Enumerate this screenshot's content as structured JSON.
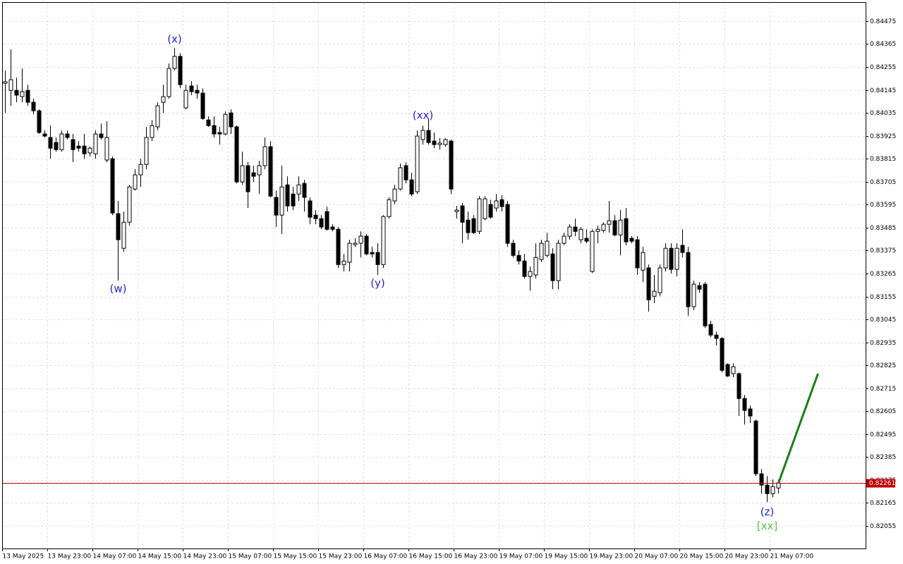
{
  "chart_data": {
    "type": "candlestick",
    "ylim": [
      0.81947,
      0.84566
    ],
    "yticks": [
      0.84475,
      0.84365,
      0.84255,
      0.84145,
      0.84035,
      0.83925,
      0.83815,
      0.83705,
      0.83595,
      0.83485,
      0.83375,
      0.83265,
      0.83155,
      0.83045,
      0.82935,
      0.82825,
      0.82715,
      0.82605,
      0.82495,
      0.82385,
      0.82275,
      0.82165,
      0.82055
    ],
    "xticks": [
      {
        "value": 0,
        "label": "13 May 2025"
      },
      {
        "value": 8,
        "label": "13 May 23:00"
      },
      {
        "value": 16,
        "label": "14 May 07:00"
      },
      {
        "value": 24,
        "label": "14 May 15:00"
      },
      {
        "value": 32,
        "label": "14 May 23:00"
      },
      {
        "value": 40,
        "label": "15 May 07:00"
      },
      {
        "value": 48,
        "label": "15 May 15:00"
      },
      {
        "value": 56,
        "label": "15 May 23:00"
      },
      {
        "value": 64,
        "label": "16 May 07:00"
      },
      {
        "value": 72,
        "label": "16 May 15:00"
      },
      {
        "value": 80,
        "label": "16 May 23:00"
      },
      {
        "value": 88,
        "label": "19 May 07:00"
      },
      {
        "value": 96,
        "label": "19 May 15:00"
      },
      {
        "value": 104,
        "label": "19 May 23:00"
      },
      {
        "value": 112,
        "label": "20 May 07:00"
      },
      {
        "value": 120,
        "label": "20 May 15:00"
      },
      {
        "value": 128,
        "label": "20 May 23:00"
      },
      {
        "value": 136,
        "label": "21 May 07:00"
      }
    ],
    "grid": true,
    "up_color": "#ffffff",
    "down_color": "#000000",
    "current_price": 0.82261,
    "current_price_color": "#c00000",
    "projection": {
      "color": "#1a7f1a",
      "x": [
        137,
        144
      ],
      "values": [
        0.82261,
        0.82785
      ]
    },
    "annotations": [
      {
        "text": "(w)",
        "color": "#2323d0"
      },
      {
        "text": "(x)",
        "color": "#2323d0"
      },
      {
        "text": "(y)",
        "color": "#2323d0"
      },
      {
        "text": "(xx)",
        "color": "#2323d0"
      },
      {
        "text": "(z)",
        "color": "#2323d0"
      },
      {
        "text": "[xx]",
        "color": "#4fc84f"
      }
    ],
    "candles": [
      [
        0.84177,
        0.84238,
        0.84035,
        0.84184
      ],
      [
        0.84143,
        0.84339,
        0.84069,
        0.84194
      ],
      [
        0.84143,
        0.84204,
        0.84086,
        0.8412
      ],
      [
        0.84113,
        0.84248,
        0.84086,
        0.84137
      ],
      [
        0.84143,
        0.8417,
        0.84069,
        0.84086
      ],
      [
        0.84086,
        0.84103,
        0.84028,
        0.84045
      ],
      [
        0.84045,
        0.84052,
        0.83934,
        0.83941
      ],
      [
        0.83934,
        0.83951,
        0.83917,
        0.83924
      ],
      [
        0.83917,
        0.83974,
        0.83815,
        0.83866
      ],
      [
        0.83893,
        0.83917,
        0.83849,
        0.83859
      ],
      [
        0.83859,
        0.83951,
        0.83849,
        0.83934
      ],
      [
        0.83934,
        0.83951,
        0.83907,
        0.83917
      ],
      [
        0.83907,
        0.83934,
        0.83799,
        0.83859
      ],
      [
        0.83876,
        0.839,
        0.83849,
        0.83866
      ],
      [
        0.83876,
        0.83934,
        0.83815,
        0.83839
      ],
      [
        0.83843,
        0.83873,
        0.83826,
        0.83866
      ],
      [
        0.83839,
        0.83951,
        0.83815,
        0.83934
      ],
      [
        0.83934,
        0.83984,
        0.83907,
        0.83917
      ],
      [
        0.83809,
        0.83995,
        0.83799,
        0.83917
      ],
      [
        0.83815,
        0.83826,
        0.83545,
        0.83555
      ],
      [
        0.83552,
        0.83613,
        0.83231,
        0.83427
      ],
      [
        0.83386,
        0.83562,
        0.83369,
        0.83511
      ],
      [
        0.83511,
        0.8369,
        0.83494,
        0.8368
      ],
      [
        0.8367,
        0.83765,
        0.83663,
        0.83738
      ],
      [
        0.83738,
        0.83815,
        0.8368,
        0.83788
      ],
      [
        0.83788,
        0.83968,
        0.83765,
        0.83917
      ],
      [
        0.83917,
        0.84001,
        0.839,
        0.83974
      ],
      [
        0.83968,
        0.84086,
        0.83951,
        0.84069
      ],
      [
        0.84086,
        0.8417,
        0.84035,
        0.84113
      ],
      [
        0.84113,
        0.84272,
        0.84103,
        0.84248
      ],
      [
        0.84248,
        0.84346,
        0.84238,
        0.84306
      ],
      [
        0.84306,
        0.84322,
        0.84153,
        0.8417
      ],
      [
        0.84059,
        0.8417,
        0.84052,
        0.84143
      ],
      [
        0.84164,
        0.84187,
        0.8412,
        0.84137
      ],
      [
        0.84143,
        0.8417,
        0.84103,
        0.8413
      ],
      [
        0.8413,
        0.84153,
        0.84001,
        0.84008
      ],
      [
        0.84001,
        0.84018,
        0.83968,
        0.83974
      ],
      [
        0.83974,
        0.84018,
        0.83917,
        0.83934
      ],
      [
        0.83941,
        0.83968,
        0.83883,
        0.83934
      ],
      [
        0.83934,
        0.84042,
        0.83927,
        0.84028
      ],
      [
        0.84035,
        0.84052,
        0.83934,
        0.83968
      ],
      [
        0.83968,
        0.83974,
        0.83697,
        0.83704
      ],
      [
        0.83704,
        0.83849,
        0.8369,
        0.83782
      ],
      [
        0.83782,
        0.83799,
        0.83579,
        0.83657
      ],
      [
        0.83748,
        0.83782,
        0.83704,
        0.83731
      ],
      [
        0.83738,
        0.83805,
        0.83646,
        0.83782
      ],
      [
        0.83782,
        0.83917,
        0.83765,
        0.83873
      ],
      [
        0.83873,
        0.839,
        0.8363,
        0.83636
      ],
      [
        0.8363,
        0.83663,
        0.83488,
        0.83545
      ],
      [
        0.83545,
        0.83782,
        0.83454,
        0.8368
      ],
      [
        0.8369,
        0.83731,
        0.83562,
        0.83589
      ],
      [
        0.83646,
        0.8368,
        0.83569,
        0.83589
      ],
      [
        0.83646,
        0.83731,
        0.83613,
        0.8369
      ],
      [
        0.83697,
        0.83714,
        0.83562,
        0.8363
      ],
      [
        0.83613,
        0.8363,
        0.83501,
        0.83535
      ],
      [
        0.83545,
        0.83569,
        0.83501,
        0.83528
      ],
      [
        0.83528,
        0.83545,
        0.83477,
        0.83488
      ],
      [
        0.83562,
        0.83586,
        0.83471,
        0.83477
      ],
      [
        0.83488,
        0.83501,
        0.83467,
        0.83477
      ],
      [
        0.83477,
        0.83488,
        0.83292,
        0.83308
      ],
      [
        0.83308,
        0.83359,
        0.83275,
        0.83325
      ],
      [
        0.83319,
        0.83427,
        0.83275,
        0.8341
      ],
      [
        0.83403,
        0.83434,
        0.83393,
        0.8341
      ],
      [
        0.8341,
        0.83467,
        0.83342,
        0.83444
      ],
      [
        0.83444,
        0.83454,
        0.83352,
        0.83359
      ],
      [
        0.83366,
        0.83393,
        0.83342,
        0.83359
      ],
      [
        0.83366,
        0.8341,
        0.83258,
        0.83308
      ],
      [
        0.83308,
        0.83545,
        0.83292,
        0.83538
      ],
      [
        0.83538,
        0.8363,
        0.83528,
        0.83619
      ],
      [
        0.83613,
        0.8369,
        0.83596,
        0.8367
      ],
      [
        0.8367,
        0.83792,
        0.83663,
        0.83772
      ],
      [
        0.83782,
        0.83799,
        0.83697,
        0.83714
      ],
      [
        0.83714,
        0.83748,
        0.83636,
        0.83646
      ],
      [
        0.83657,
        0.83951,
        0.83646,
        0.83924
      ],
      [
        0.83907,
        0.83974,
        0.83883,
        0.83951
      ],
      [
        0.83951,
        0.84008,
        0.83883,
        0.83893
      ],
      [
        0.839,
        0.83941,
        0.83866,
        0.83883
      ],
      [
        0.83883,
        0.83914,
        0.83859,
        0.8389
      ],
      [
        0.83883,
        0.83914,
        0.83873,
        0.83907
      ],
      [
        0.839,
        0.83907,
        0.83646,
        0.8367
      ],
      [
        0.83562,
        0.83589,
        0.83528,
        0.83569
      ],
      [
        0.83589,
        0.83603,
        0.8341,
        0.83511
      ],
      [
        0.83521,
        0.83562,
        0.83427,
        0.83461
      ],
      [
        0.83528,
        0.83545,
        0.83454,
        0.83461
      ],
      [
        0.83467,
        0.83636,
        0.83454,
        0.83623
      ],
      [
        0.83528,
        0.83636,
        0.83521,
        0.83623
      ],
      [
        0.83596,
        0.83619,
        0.83528,
        0.83535
      ],
      [
        0.83579,
        0.83646,
        0.83562,
        0.83613
      ],
      [
        0.83619,
        0.8364,
        0.83562,
        0.83586
      ],
      [
        0.83596,
        0.83613,
        0.83393,
        0.8341
      ],
      [
        0.8341,
        0.83427,
        0.83342,
        0.83352
      ],
      [
        0.83352,
        0.83376,
        0.83308,
        0.83325
      ],
      [
        0.83325,
        0.83359,
        0.83241,
        0.83251
      ],
      [
        0.83251,
        0.83298,
        0.83183,
        0.83275
      ],
      [
        0.83258,
        0.8341,
        0.83241,
        0.83342
      ],
      [
        0.83332,
        0.83427,
        0.83319,
        0.8341
      ],
      [
        0.83352,
        0.83461,
        0.83342,
        0.8342
      ],
      [
        0.83359,
        0.83386,
        0.8319,
        0.83231
      ],
      [
        0.83231,
        0.83427,
        0.8319,
        0.8341
      ],
      [
        0.8341,
        0.83461,
        0.834,
        0.83444
      ],
      [
        0.83444,
        0.83501,
        0.83427,
        0.83488
      ],
      [
        0.83488,
        0.83528,
        0.83444,
        0.83467
      ],
      [
        0.83427,
        0.83488,
        0.8341,
        0.83477
      ],
      [
        0.83434,
        0.83477,
        0.8341,
        0.8342
      ],
      [
        0.83275,
        0.83477,
        0.83268,
        0.83467
      ],
      [
        0.83467,
        0.83494,
        0.8341,
        0.83477
      ],
      [
        0.83471,
        0.83511,
        0.83461,
        0.83501
      ],
      [
        0.83501,
        0.83613,
        0.83461,
        0.83518
      ],
      [
        0.83518,
        0.83545,
        0.83444,
        0.8345
      ],
      [
        0.8345,
        0.83569,
        0.83352,
        0.83521
      ],
      [
        0.83528,
        0.83579,
        0.834,
        0.83417
      ],
      [
        0.83434,
        0.83444,
        0.8341,
        0.8342
      ],
      [
        0.83427,
        0.83444,
        0.83258,
        0.83292
      ],
      [
        0.83281,
        0.83393,
        0.83224,
        0.83366
      ],
      [
        0.83292,
        0.83308,
        0.83082,
        0.83139
      ],
      [
        0.83156,
        0.83258,
        0.83123,
        0.8318
      ],
      [
        0.83173,
        0.83308,
        0.83156,
        0.83292
      ],
      [
        0.83292,
        0.8341,
        0.83275,
        0.83386
      ],
      [
        0.83386,
        0.8341,
        0.83265,
        0.83285
      ],
      [
        0.83285,
        0.8341,
        0.83251,
        0.83386
      ],
      [
        0.834,
        0.83477,
        0.83342,
        0.83366
      ],
      [
        0.83366,
        0.83393,
        0.83062,
        0.83106
      ],
      [
        0.83106,
        0.83231,
        0.83089,
        0.83214
      ],
      [
        0.83207,
        0.83224,
        0.83173,
        0.8319
      ],
      [
        0.83214,
        0.83224,
        0.83004,
        0.83014
      ],
      [
        0.83021,
        0.83038,
        0.8296,
        0.8297
      ],
      [
        0.8297,
        0.82987,
        0.8292,
        0.82954
      ],
      [
        0.82954,
        0.8296,
        0.82791,
        0.82801
      ],
      [
        0.82829,
        0.82835,
        0.82768,
        0.82774
      ],
      [
        0.82785,
        0.82835,
        0.82768,
        0.82818
      ],
      [
        0.82785,
        0.82791,
        0.82582,
        0.82666
      ],
      [
        0.82666,
        0.82683,
        0.82541,
        0.82609
      ],
      [
        0.82616,
        0.82632,
        0.82548,
        0.82582
      ],
      [
        0.82558,
        0.82565,
        0.82294,
        0.82305
      ],
      [
        0.82305,
        0.82328,
        0.8221,
        0.82251
      ],
      [
        0.82251,
        0.82294,
        0.82169,
        0.8221
      ],
      [
        0.8221,
        0.82278,
        0.82193,
        0.82244
      ],
      [
        0.82237,
        0.82278,
        0.8221,
        0.82261
      ]
    ]
  }
}
